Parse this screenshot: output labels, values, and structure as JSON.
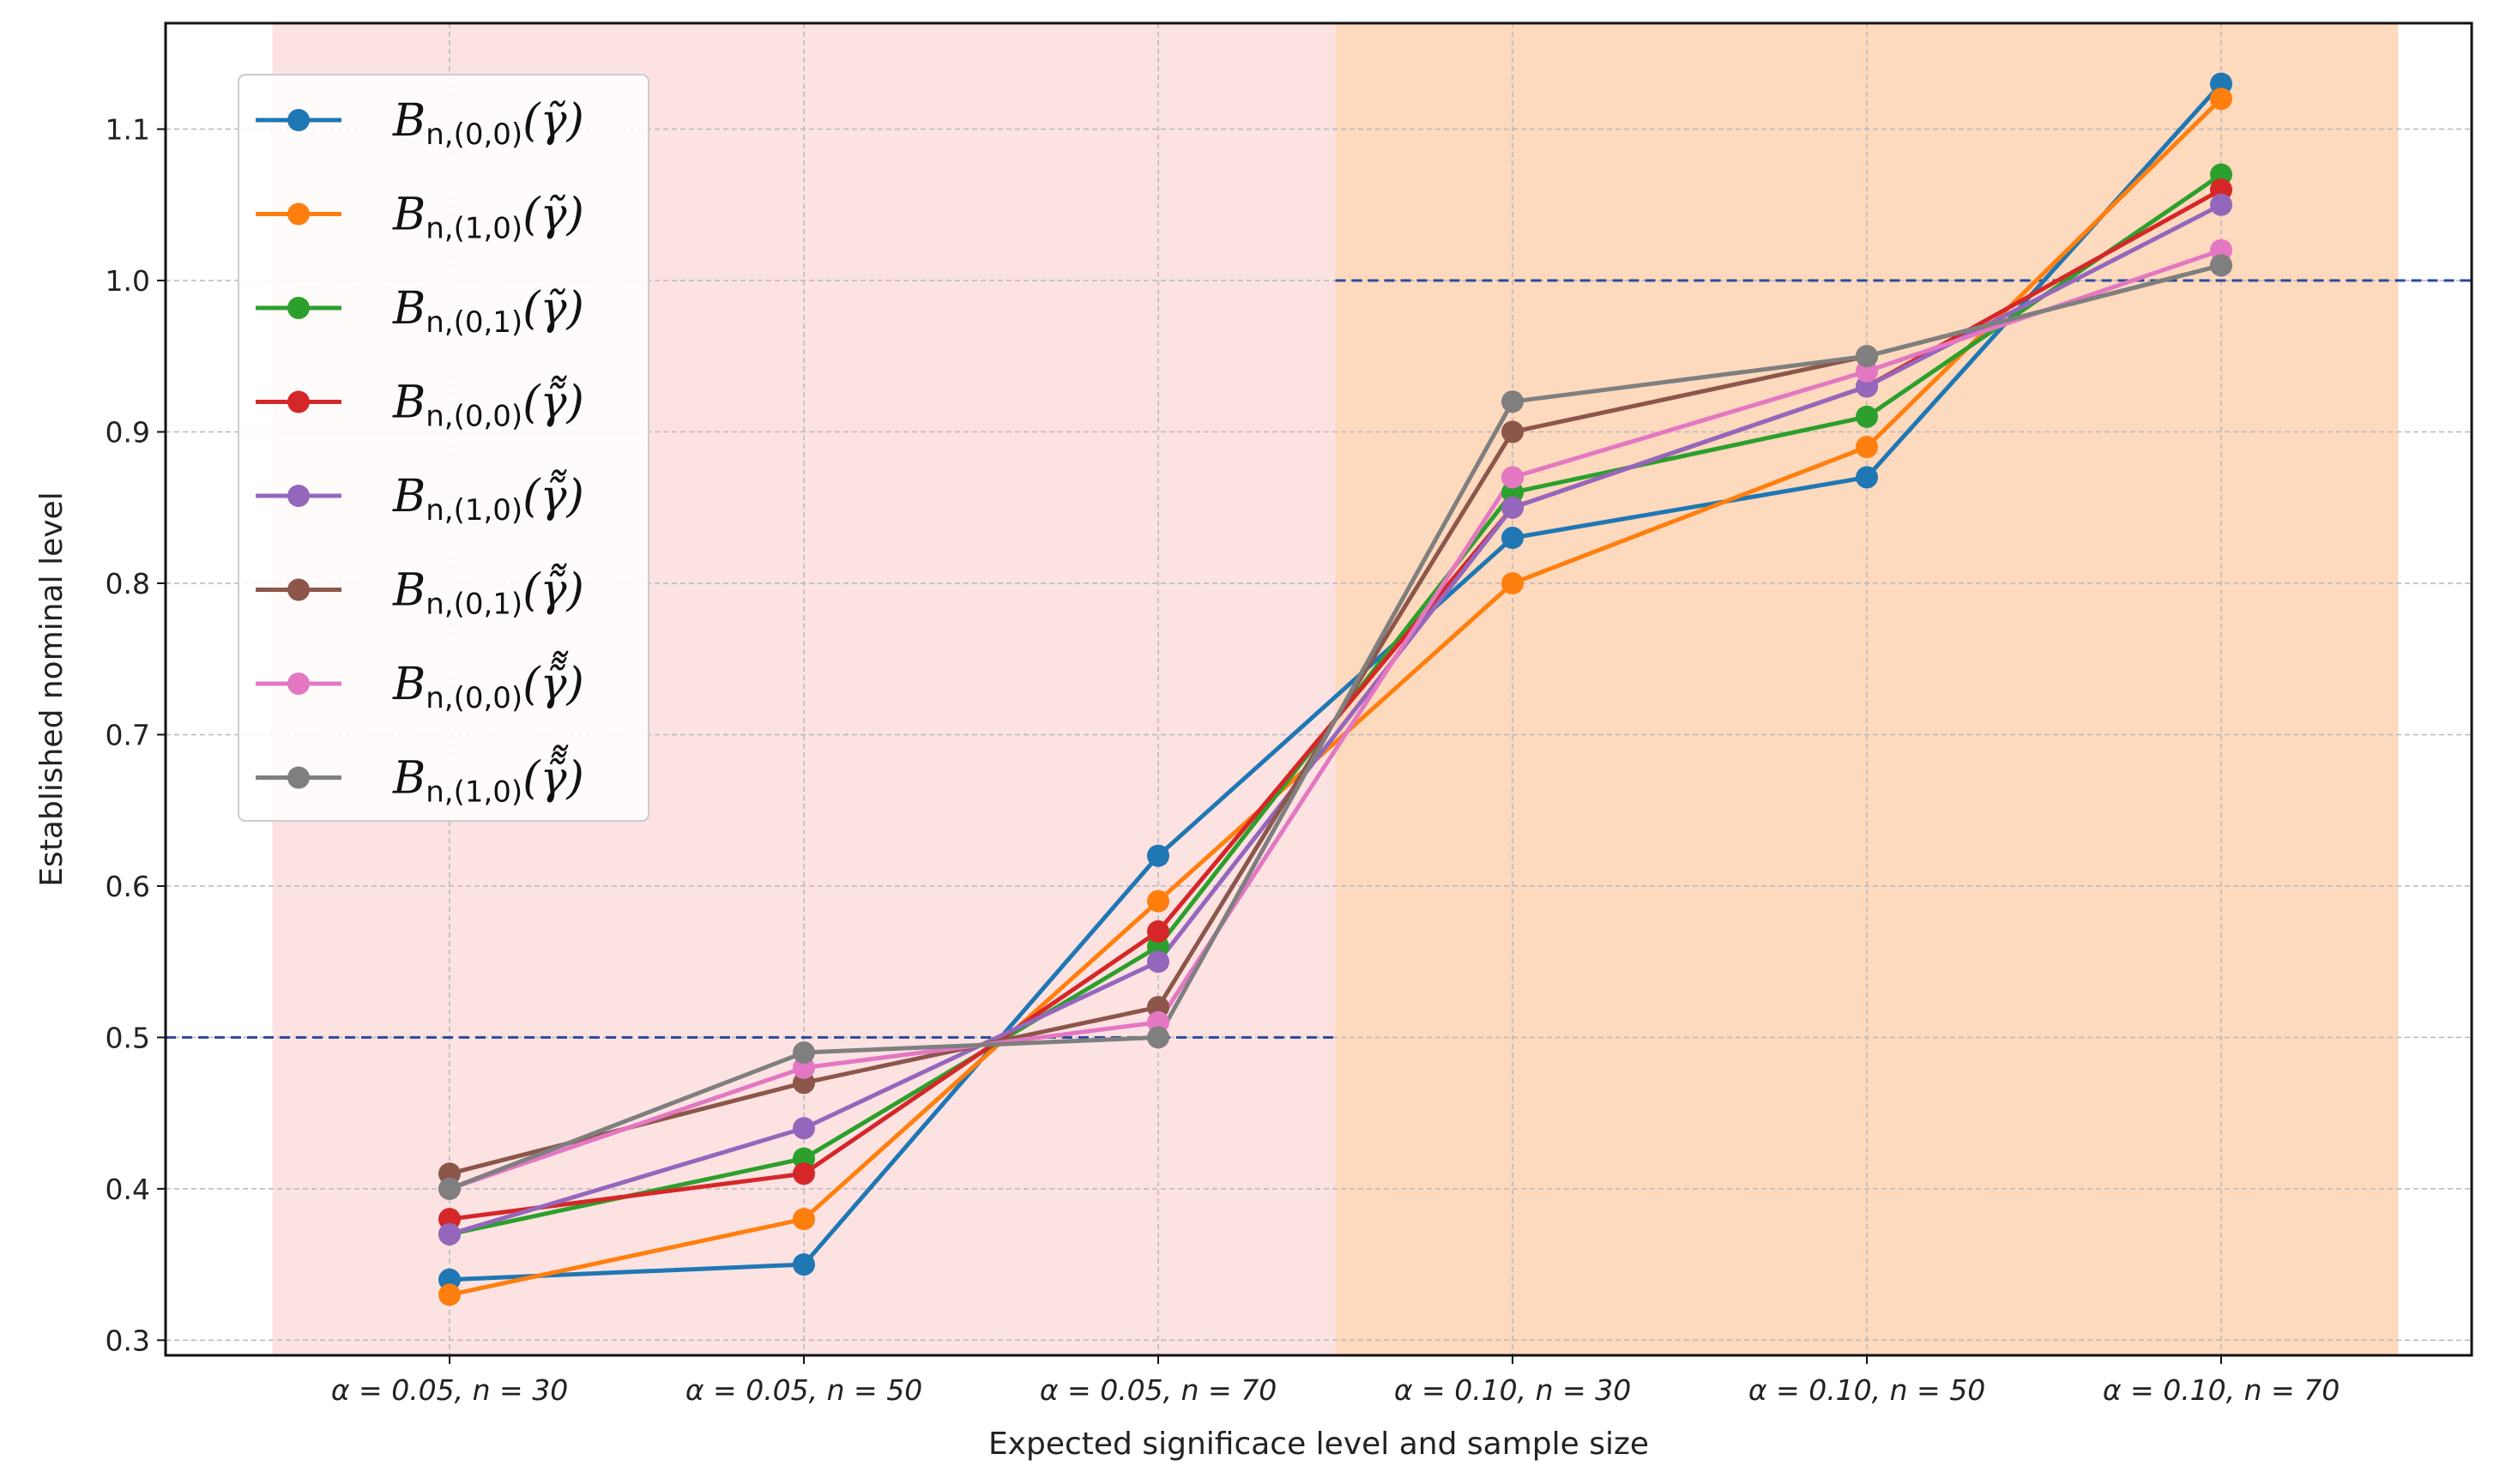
{
  "chart_data": {
    "type": "line",
    "xlabel": "Expected significace level and sample size",
    "ylabel": "Established nominal level",
    "categories": [
      "α = 0.05, n = 30",
      "α = 0.05, n = 50",
      "α = 0.05, n = 70",
      "α = 0.10, n = 30",
      "α = 0.10, n = 50",
      "α = 0.10, n = 70"
    ],
    "ylim": [
      0.29,
      1.17
    ],
    "yticks": [
      "0.3",
      "0.4",
      "0.5",
      "0.6",
      "0.7",
      "0.8",
      "0.9",
      "1.0",
      "1.1"
    ],
    "grid": true,
    "legend_position": "top-left",
    "shaded_regions": [
      {
        "from_category": 0,
        "to_category": 2,
        "color": "#fde2e2",
        "reference_level": 0.5
      },
      {
        "from_category": 3,
        "to_category": 5,
        "color": "#fdd9be",
        "reference_level": 1.0
      }
    ],
    "reference_line_color": "#2b4a9c",
    "series": [
      {
        "name": "B_{n,(0,0)}(γ̃)",
        "label_base": "B",
        "label_sub": "n,(0,0)",
        "label_arg": "(γ̃)",
        "color": "#1f77b4",
        "values": [
          0.34,
          0.35,
          0.62,
          0.83,
          0.87,
          1.13
        ]
      },
      {
        "name": "B_{n,(1,0)}(γ̃)",
        "label_base": "B",
        "label_sub": "n,(1,0)",
        "label_arg": "(γ̃)",
        "color": "#ff7f0e",
        "values": [
          0.33,
          0.38,
          0.59,
          0.8,
          0.89,
          1.12
        ]
      },
      {
        "name": "B_{n,(0,1)}(γ̃)",
        "label_base": "B",
        "label_sub": "n,(0,1)",
        "label_arg": "(γ̃)",
        "color": "#2ca02c",
        "values": [
          0.37,
          0.42,
          0.56,
          0.86,
          0.91,
          1.07
        ]
      },
      {
        "name": "B_{n,(0,0)}(γ̃̃)",
        "label_base": "B",
        "label_sub": "n,(0,0)",
        "label_arg": "(γ̃̃)",
        "color": "#d62728",
        "values": [
          0.38,
          0.41,
          0.57,
          0.85,
          0.93,
          1.06
        ]
      },
      {
        "name": "B_{n,(1,0)}(γ̃̃)",
        "label_base": "B",
        "label_sub": "n,(1,0)",
        "label_arg": "(γ̃̃)",
        "color": "#9467bd",
        "values": [
          0.37,
          0.44,
          0.55,
          0.85,
          0.93,
          1.05
        ]
      },
      {
        "name": "B_{n,(0,1)}(γ̃̃)",
        "label_base": "B",
        "label_sub": "n,(0,1)",
        "label_arg": "(γ̃̃)",
        "color": "#8c564b",
        "values": [
          0.41,
          0.47,
          0.52,
          0.9,
          0.95,
          1.01
        ]
      },
      {
        "name": "B_{n,(0,0)}(γ̃̃̃)",
        "label_base": "B",
        "label_sub": "n,(0,0)",
        "label_arg": "(γ̃̃̃)",
        "color": "#e377c2",
        "values": [
          0.4,
          0.48,
          0.51,
          0.87,
          0.94,
          1.02
        ]
      },
      {
        "name": "B_{n,(1,0)}(γ̃̃̃)",
        "label_base": "B",
        "label_sub": "n,(1,0)",
        "label_arg": "(γ̃̃̃)",
        "color": "#7f7f7f",
        "values": [
          0.4,
          0.49,
          0.5,
          0.92,
          0.95,
          1.01
        ]
      }
    ]
  }
}
